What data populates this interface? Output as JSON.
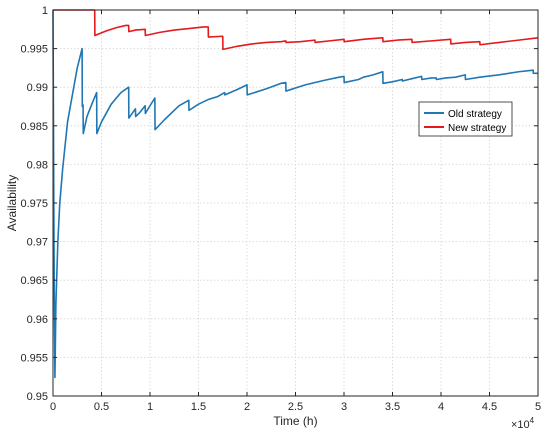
{
  "chart_data": {
    "type": "line",
    "title": "",
    "xlabel": "Time (h)",
    "ylabel": "Availability",
    "x_exponent_label": "×10",
    "x_exponent_power": "4",
    "xlim": [
      0,
      50000
    ],
    "ylim": [
      0.95,
      1.0
    ],
    "xticks": [
      0,
      5000,
      10000,
      15000,
      20000,
      25000,
      30000,
      35000,
      40000,
      45000,
      50000
    ],
    "xtick_labels": [
      "0",
      "0.5",
      "1",
      "1.5",
      "2",
      "2.5",
      "3",
      "3.5",
      "4",
      "4.5",
      "5"
    ],
    "yticks": [
      0.95,
      0.955,
      0.96,
      0.965,
      0.97,
      0.975,
      0.98,
      0.985,
      0.99,
      0.995,
      1.0
    ],
    "ytick_labels": [
      "0.95",
      "0.955",
      "0.96",
      "0.965",
      "0.97",
      "0.975",
      "0.98",
      "0.985",
      "0.99",
      "0.995",
      "1"
    ],
    "grid": true,
    "legend_position": "right",
    "series": [
      {
        "name": "Old strategy",
        "color": "#1f77b4",
        "points": [
          [
            0,
            1.0
          ],
          [
            50,
            0.985
          ],
          [
            100,
            0.97
          ],
          [
            150,
            0.96
          ],
          [
            200,
            0.9524
          ],
          [
            300,
            0.962
          ],
          [
            500,
            0.97
          ],
          [
            700,
            0.975
          ],
          [
            1000,
            0.9795
          ],
          [
            1500,
            0.9855
          ],
          [
            2000,
            0.989
          ],
          [
            2500,
            0.9925
          ],
          [
            3000,
            0.995
          ],
          [
            3020,
            0.9875
          ],
          [
            3100,
            0.9877
          ],
          [
            3120,
            0.984
          ],
          [
            3500,
            0.9862
          ],
          [
            4000,
            0.9878
          ],
          [
            4500,
            0.9893
          ],
          [
            4520,
            0.984
          ],
          [
            5000,
            0.9855
          ],
          [
            6000,
            0.9878
          ],
          [
            7000,
            0.9893
          ],
          [
            7800,
            0.99
          ],
          [
            7820,
            0.986
          ],
          [
            8500,
            0.9872
          ],
          [
            8520,
            0.9862
          ],
          [
            9000,
            0.9868
          ],
          [
            9500,
            0.9876
          ],
          [
            9520,
            0.9866
          ],
          [
            10000,
            0.9876
          ],
          [
            10500,
            0.9886
          ],
          [
            10520,
            0.9845
          ],
          [
            11500,
            0.9858
          ],
          [
            13000,
            0.9876
          ],
          [
            14000,
            0.9883
          ],
          [
            14020,
            0.987
          ],
          [
            15000,
            0.9878
          ],
          [
            16000,
            0.9884
          ],
          [
            17000,
            0.9888
          ],
          [
            17700,
            0.9893
          ],
          [
            17720,
            0.989
          ],
          [
            19000,
            0.9897
          ],
          [
            20000,
            0.9903
          ],
          [
            20020,
            0.989
          ],
          [
            22000,
            0.9898
          ],
          [
            23500,
            0.9905
          ],
          [
            24000,
            0.9906
          ],
          [
            24020,
            0.9895
          ],
          [
            26000,
            0.9903
          ],
          [
            28000,
            0.9909
          ],
          [
            29500,
            0.9913
          ],
          [
            30000,
            0.9914
          ],
          [
            30020,
            0.9906
          ],
          [
            31500,
            0.991
          ],
          [
            32000,
            0.9913
          ],
          [
            33000,
            0.9916
          ],
          [
            34000,
            0.992
          ],
          [
            34020,
            0.9905
          ],
          [
            35000,
            0.9907
          ],
          [
            36000,
            0.991
          ],
          [
            36020,
            0.9908
          ],
          [
            37000,
            0.9911
          ],
          [
            38000,
            0.9914
          ],
          [
            38020,
            0.991
          ],
          [
            39000,
            0.9912
          ],
          [
            39500,
            0.9912
          ],
          [
            39520,
            0.991
          ],
          [
            40500,
            0.9912
          ],
          [
            41500,
            0.9913
          ],
          [
            42500,
            0.9916
          ],
          [
            42520,
            0.991
          ],
          [
            44000,
            0.9913
          ],
          [
            46000,
            0.9916
          ],
          [
            48000,
            0.992
          ],
          [
            49500,
            0.9922
          ],
          [
            49520,
            0.9918
          ],
          [
            50000,
            0.9918
          ]
        ]
      },
      {
        "name": "New strategy",
        "color": "#e41a1c",
        "points": [
          [
            0,
            1.0
          ],
          [
            4300,
            1.0
          ],
          [
            4320,
            0.9967
          ],
          [
            5500,
            0.9973
          ],
          [
            6500,
            0.9977
          ],
          [
            7500,
            0.998
          ],
          [
            7800,
            0.998
          ],
          [
            7820,
            0.9972
          ],
          [
            8500,
            0.9974
          ],
          [
            9500,
            0.9975
          ],
          [
            9520,
            0.9967
          ],
          [
            11000,
            0.9971
          ],
          [
            12500,
            0.9974
          ],
          [
            14000,
            0.9976
          ],
          [
            15500,
            0.9978
          ],
          [
            16000,
            0.9978
          ],
          [
            16020,
            0.9965
          ],
          [
            17500,
            0.9966
          ],
          [
            17520,
            0.9949
          ],
          [
            19000,
            0.9953
          ],
          [
            20500,
            0.9956
          ],
          [
            22000,
            0.9958
          ],
          [
            23500,
            0.9959
          ],
          [
            24000,
            0.996
          ],
          [
            24020,
            0.9958
          ],
          [
            25500,
            0.9959
          ],
          [
            27000,
            0.9961
          ],
          [
            27020,
            0.9958
          ],
          [
            28500,
            0.996
          ],
          [
            30000,
            0.9962
          ],
          [
            30020,
            0.9959
          ],
          [
            32000,
            0.9962
          ],
          [
            34000,
            0.9964
          ],
          [
            34020,
            0.9959
          ],
          [
            35500,
            0.9961
          ],
          [
            37000,
            0.9962
          ],
          [
            37020,
            0.9958
          ],
          [
            39000,
            0.996
          ],
          [
            41000,
            0.9962
          ],
          [
            41020,
            0.9956
          ],
          [
            42500,
            0.9958
          ],
          [
            44000,
            0.9959
          ],
          [
            44020,
            0.9955
          ],
          [
            46000,
            0.9958
          ],
          [
            48000,
            0.9961
          ],
          [
            50000,
            0.9964
          ]
        ]
      }
    ]
  }
}
